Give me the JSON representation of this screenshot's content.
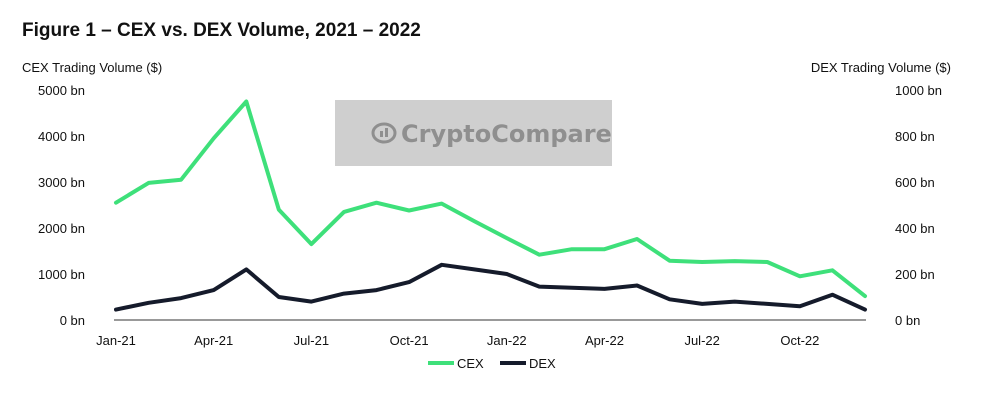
{
  "chart_data": {
    "type": "line",
    "title": "Figure 1 – CEX vs. DEX Volume, 2021 – 2022",
    "ylabel_left": "CEX Trading Volume ($)",
    "ylabel_right": "DEX Trading Volume ($)",
    "x_tick_labels": [
      "Jan-21",
      "Apr-21",
      "Jul-21",
      "Oct-21",
      "Jan-22",
      "Apr-22",
      "Jul-22",
      "Oct-22"
    ],
    "x_tick_index": [
      0,
      3,
      6,
      9,
      12,
      15,
      18,
      21
    ],
    "x": [
      "Jan-21",
      "Feb-21",
      "Mar-21",
      "Apr-21",
      "May-21",
      "Jun-21",
      "Jul-21",
      "Aug-21",
      "Sep-21",
      "Oct-21",
      "Nov-21",
      "Dec-21",
      "Jan-22",
      "Feb-22",
      "Mar-22",
      "Apr-22",
      "May-22",
      "Jun-22",
      "Jul-22",
      "Aug-22",
      "Sep-22",
      "Oct-22",
      "Nov-22",
      "Dec-22"
    ],
    "ylim_left": [
      0,
      5000
    ],
    "ylim_right": [
      0,
      1000
    ],
    "y_ticks_left": [
      "0 bn",
      "1000 bn",
      "2000 bn",
      "3000 bn",
      "4000 bn",
      "5000 bn"
    ],
    "y_ticks_right": [
      "0 bn",
      "200 bn",
      "400 bn",
      "600 bn",
      "800 bn",
      "1000 bn"
    ],
    "grid": false,
    "legend_position": "bottom",
    "series": [
      {
        "name": "CEX",
        "axis": "left",
        "color": "#3ee07a",
        "values": [
          2550,
          2980,
          3050,
          3950,
          4750,
          2400,
          1650,
          2350,
          2550,
          2380,
          2530,
          2150,
          1780,
          1420,
          1540,
          1540,
          1760,
          1290,
          1260,
          1280,
          1260,
          950,
          1080,
          520
        ]
      },
      {
        "name": "DEX",
        "axis": "right",
        "color": "#151b2b",
        "values": [
          45,
          75,
          95,
          130,
          220,
          100,
          80,
          115,
          130,
          165,
          240,
          220,
          200,
          145,
          140,
          135,
          150,
          90,
          70,
          80,
          70,
          60,
          110,
          45
        ]
      }
    ]
  },
  "watermark": {
    "text": "CryptoCompare",
    "icon": "cryptocompare-logo-icon"
  }
}
